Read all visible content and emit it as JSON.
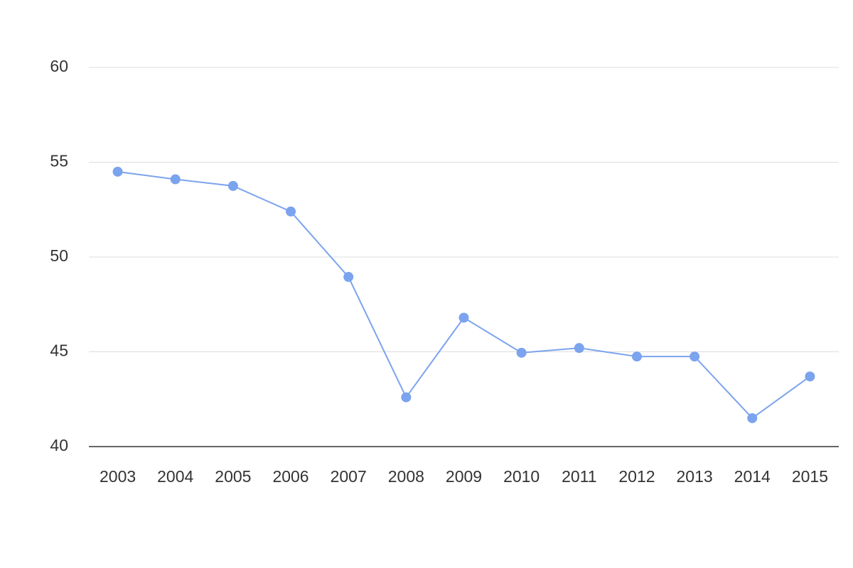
{
  "chart_data": {
    "type": "line",
    "categories": [
      "2003",
      "2004",
      "2005",
      "2006",
      "2007",
      "2008",
      "2009",
      "2010",
      "2011",
      "2012",
      "2013",
      "2014",
      "2015"
    ],
    "series": [
      {
        "color": "#7ba3ee",
        "values": [
          54.5,
          54.1,
          53.75,
          52.4,
          48.95,
          42.6,
          46.8,
          44.95,
          45.2,
          44.75,
          44.75,
          41.5,
          43.7
        ]
      }
    ],
    "ylim": [
      40,
      60
    ],
    "yticks": [
      40,
      45,
      50,
      55,
      60
    ],
    "grid": true
  }
}
